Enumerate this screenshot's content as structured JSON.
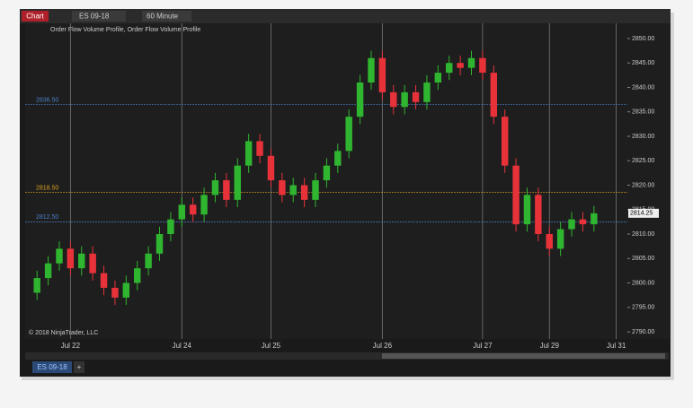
{
  "window": {
    "title": "Chart",
    "instrument": "ES 09-18",
    "interval": "60 Minute"
  },
  "tabs": [
    "ES 09-18"
  ],
  "add_tab": "+",
  "chart_data": {
    "type": "candlestick",
    "indicator_label": "Order Flow Volume Profile, Order Flow Volume Profile",
    "copyright": "© 2018 NinjaTrader, LLC",
    "open": [
      2798,
      2801,
      2804,
      2807,
      2803,
      2806,
      2802,
      2799,
      2797,
      2800,
      2803,
      2806,
      2810,
      2813,
      2816,
      2814,
      2818,
      2821,
      2817,
      2824,
      2829,
      2826,
      2821,
      2818,
      2820,
      2817,
      2821,
      2824,
      2827,
      2834,
      2841,
      2846,
      2839,
      2836,
      2839,
      2837,
      2841,
      2843,
      2845,
      2844,
      2846,
      2843,
      2834,
      2824,
      2812,
      2818,
      2810,
      2807,
      2811,
      2813,
      2812
    ],
    "high": [
      2802.5,
      2805.5,
      2808.5,
      2808.5,
      2807.5,
      2807.5,
      2803.5,
      2800.5,
      2801.5,
      2804.5,
      2807.5,
      2811.5,
      2814.5,
      2817.5,
      2817.5,
      2819.5,
      2822.5,
      2822.5,
      2825.5,
      2830.5,
      2830.5,
      2827.5,
      2822.5,
      2821.5,
      2821.5,
      2822.5,
      2825.5,
      2828.5,
      2835.5,
      2842.5,
      2847.5,
      2847.5,
      2840.5,
      2840.5,
      2840.5,
      2842.5,
      2844.5,
      2846.5,
      2846.5,
      2847.5,
      2847.5,
      2844.5,
      2835.5,
      2825.5,
      2819.5,
      2819.5,
      2811.5,
      2812.5,
      2814.5,
      2814.5,
      2815.75
    ],
    "low": [
      2796.5,
      2799.5,
      2802.5,
      2801.5,
      2801.5,
      2800.5,
      2797.5,
      2795.5,
      2795.5,
      2798.5,
      2801.5,
      2804.5,
      2808.5,
      2811.5,
      2812.5,
      2812.5,
      2816.5,
      2815.5,
      2815.5,
      2822.5,
      2824.5,
      2819.5,
      2816.5,
      2816.5,
      2815.5,
      2815.5,
      2819.5,
      2822.5,
      2825.5,
      2832.5,
      2839.5,
      2837.5,
      2834.5,
      2834.5,
      2835.5,
      2835.5,
      2839.5,
      2841.5,
      2842.5,
      2842.5,
      2841.5,
      2832.5,
      2822.5,
      2810.5,
      2810.5,
      2808.5,
      2805.5,
      2805.5,
      2809.5,
      2810.5,
      2810.5
    ],
    "close": [
      2801,
      2804,
      2807,
      2803,
      2806,
      2802,
      2799,
      2797,
      2800,
      2803,
      2806,
      2810,
      2813,
      2816,
      2814,
      2818,
      2821,
      2817,
      2824,
      2829,
      2826,
      2821,
      2818,
      2820,
      2817,
      2821,
      2824,
      2827,
      2834,
      2841,
      2846,
      2839,
      2836,
      2839,
      2837,
      2841,
      2843,
      2845,
      2844,
      2846,
      2843,
      2834,
      2824,
      2812,
      2818,
      2810,
      2807,
      2811,
      2813,
      2812,
      2814.25
    ],
    "up_color": "#2fb52f",
    "down_color": "#e8323a",
    "xlim": [
      -0.5,
      53
    ],
    "xticks": [
      {
        "value": 3,
        "label": "Jul 22"
      },
      {
        "value": 13,
        "label": "Jul 24"
      },
      {
        "value": 21,
        "label": "Jul 25"
      },
      {
        "value": 31,
        "label": "Jul 26"
      },
      {
        "value": 40,
        "label": "Jul 27"
      },
      {
        "value": 46,
        "label": "Jul 29"
      },
      {
        "value": 52,
        "label": "Jul 31"
      }
    ],
    "ylim": [
      2789,
      2851
    ],
    "yticks": [
      {
        "value": 2790,
        "label": "2790.00"
      },
      {
        "value": 2795,
        "label": "2795.00"
      },
      {
        "value": 2800,
        "label": "2800.00"
      },
      {
        "value": 2805,
        "label": "2805.00"
      },
      {
        "value": 2810,
        "label": "2810.00"
      },
      {
        "value": 2815,
        "label": "2815.00"
      },
      {
        "value": 2820,
        "label": "2820.00"
      },
      {
        "value": 2825,
        "label": "2825.00"
      },
      {
        "value": 2830,
        "label": "2830.00"
      },
      {
        "value": 2835,
        "label": "2835.00"
      },
      {
        "value": 2840,
        "label": "2840.00"
      },
      {
        "value": 2845,
        "label": "2845.00"
      },
      {
        "value": 2850,
        "label": "2850.00"
      }
    ],
    "price_lines": [
      {
        "value": 2836.5,
        "label": "2836.50",
        "color": "#4a7fc9"
      },
      {
        "value": 2818.5,
        "label": "2818.50",
        "color": "#d9a020"
      },
      {
        "value": 2812.5,
        "label": "2812.50",
        "color": "#4a7fc9"
      }
    ]
  }
}
